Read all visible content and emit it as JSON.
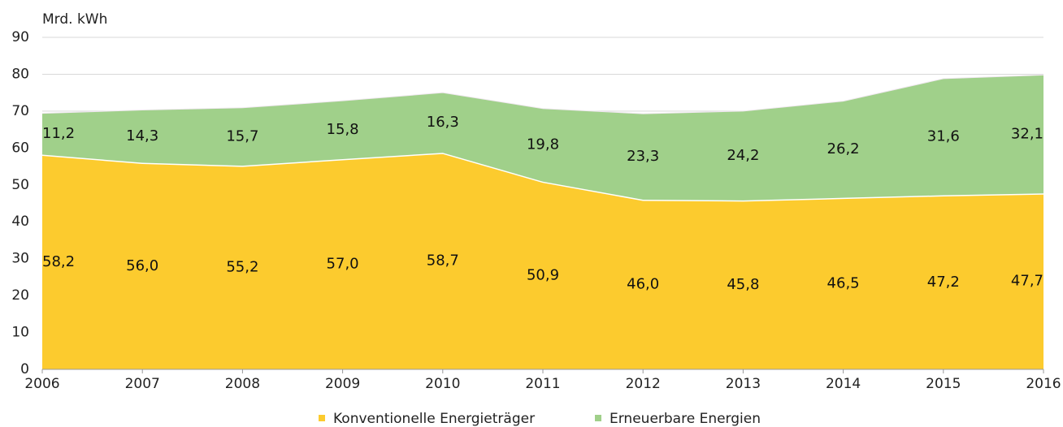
{
  "chart_data": {
    "type": "stacked_area",
    "y_axis_label": "Mrd. kWh",
    "x": [
      2006,
      2007,
      2008,
      2009,
      2010,
      2011,
      2012,
      2013,
      2014,
      2015,
      2016
    ],
    "xlim": [
      2006,
      2016
    ],
    "xticks": [
      2006,
      2007,
      2008,
      2009,
      2010,
      2011,
      2012,
      2013,
      2014,
      2015,
      2016
    ],
    "ylim": [
      0,
      90
    ],
    "yticks": [
      0,
      10,
      20,
      30,
      40,
      50,
      60,
      70,
      80,
      90
    ],
    "grid": true,
    "legend": "bottom",
    "series": [
      {
        "name": "Konventionelle Energieträger",
        "color": "#fccb2e",
        "values": [
          58.2,
          56.0,
          55.2,
          57.0,
          58.7,
          50.9,
          46.0,
          45.8,
          46.5,
          47.2,
          47.7
        ],
        "value_labels": [
          "58,2",
          "56,0",
          "55,2",
          "57,0",
          "58,7",
          "50,9",
          "46,0",
          "45,8",
          "46,5",
          "47,2",
          "47,7"
        ]
      },
      {
        "name": "Erneuerbare Energien",
        "color": "#a0d08a",
        "values": [
          11.2,
          14.3,
          15.7,
          15.8,
          16.3,
          19.8,
          23.3,
          24.2,
          26.2,
          31.6,
          32.1
        ],
        "value_labels": [
          "11,2",
          "14,3",
          "15,7",
          "15,8",
          "16,3",
          "19,8",
          "23,3",
          "24,2",
          "26,2",
          "31,6",
          "32,1"
        ]
      }
    ]
  }
}
